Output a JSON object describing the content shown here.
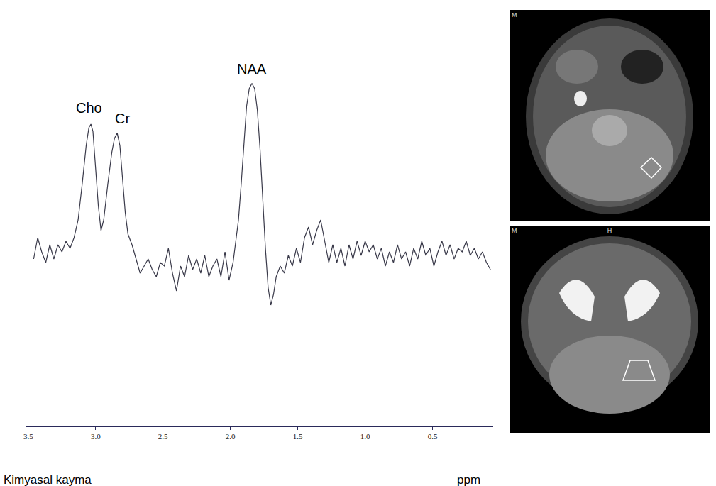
{
  "chart_data": {
    "type": "line",
    "xlabel": "Kimyasal kayma",
    "xlabel_unit": "ppm",
    "x": [
      3.46,
      3.43,
      3.4,
      3.37,
      3.34,
      3.31,
      3.28,
      3.25,
      3.22,
      3.19,
      3.16,
      3.13,
      3.1,
      3.07,
      3.05,
      3.035,
      3.02,
      3.0,
      2.98,
      2.96,
      2.94,
      2.91,
      2.88,
      2.86,
      2.84,
      2.82,
      2.8,
      2.78,
      2.76,
      2.73,
      2.7,
      2.67,
      2.64,
      2.61,
      2.58,
      2.55,
      2.52,
      2.49,
      2.46,
      2.43,
      2.4,
      2.37,
      2.34,
      2.31,
      2.28,
      2.25,
      2.22,
      2.19,
      2.16,
      2.13,
      2.1,
      2.07,
      2.04,
      2.01,
      1.98,
      1.96,
      1.94,
      1.92,
      1.9,
      1.88,
      1.86,
      1.84,
      1.82,
      1.8,
      1.78,
      1.76,
      1.74,
      1.72,
      1.7,
      1.68,
      1.66,
      1.63,
      1.6,
      1.57,
      1.54,
      1.51,
      1.48,
      1.45,
      1.42,
      1.39,
      1.36,
      1.33,
      1.3,
      1.27,
      1.24,
      1.21,
      1.18,
      1.15,
      1.12,
      1.09,
      1.06,
      1.03,
      1.0,
      0.97,
      0.94,
      0.91,
      0.88,
      0.85,
      0.82,
      0.79,
      0.76,
      0.73,
      0.7,
      0.67,
      0.64,
      0.61,
      0.58,
      0.55,
      0.52,
      0.49,
      0.46,
      0.43,
      0.4,
      0.37,
      0.34,
      0.31,
      0.28,
      0.25,
      0.22,
      0.19,
      0.16,
      0.13,
      0.1,
      0.07
    ],
    "values": [
      47,
      53,
      49,
      46,
      51,
      47,
      51,
      49,
      52,
      50,
      53,
      58,
      68,
      79,
      84,
      85,
      83,
      72,
      62,
      55,
      58,
      68,
      77,
      81,
      82.5,
      79,
      70,
      60,
      54,
      51,
      47,
      43,
      45,
      47,
      44,
      42,
      46,
      45,
      50,
      43,
      38,
      45,
      42,
      48,
      44,
      47,
      43,
      48,
      42,
      45,
      47,
      42,
      49,
      41,
      46,
      52,
      58,
      68,
      80,
      90,
      95,
      96.5,
      95,
      89,
      78,
      64,
      50,
      39,
      34,
      37,
      42,
      45,
      43,
      48,
      45,
      50,
      46,
      53,
      56,
      51,
      55,
      58,
      52,
      46,
      51,
      46,
      50,
      45,
      51,
      47,
      52,
      48,
      52,
      49,
      51,
      47,
      50,
      45,
      49,
      46,
      51,
      47,
      49,
      45,
      50,
      47,
      52,
      48,
      50,
      45,
      49,
      52,
      48,
      51,
      47,
      50,
      49,
      52,
      48,
      50,
      47,
      49,
      46,
      44
    ],
    "color": "#3a3a4a",
    "xlim": [
      3.52,
      0.05
    ],
    "xticks": [
      3.5,
      {
        "value": 3,
        "label": "3.0"
      },
      2.5,
      {
        "value": 2,
        "label": "2.0"
      },
      1.5,
      {
        "value": 1,
        "label": "1.0"
      },
      0.5
    ],
    "ylim": [
      0,
      100
    ],
    "yticks": [],
    "tick_labels": "x",
    "grid": false,
    "annotations": [
      {
        "text": "Cho",
        "x": 3.05,
        "y": 87
      },
      {
        "text": "Cr",
        "x": 2.8,
        "y": 84
      },
      {
        "text": "NAA",
        "x": 1.84,
        "y": 98
      }
    ],
    "images": [
      {
        "labels": [
          "M"
        ]
      },
      {
        "labels": [
          "M",
          "H"
        ]
      }
    ]
  }
}
